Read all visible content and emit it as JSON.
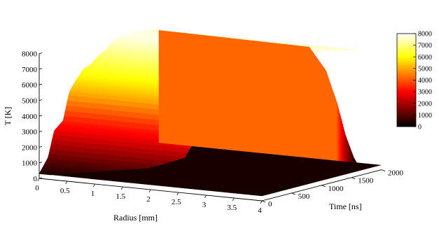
{
  "chart_data": {
    "type": "surface-3d",
    "title": "",
    "xlabel": "Radius [mm]",
    "ylabel": "Time [ns]",
    "zlabel": "T [K]",
    "xlim": [
      0,
      4
    ],
    "ylim": [
      0,
      2000
    ],
    "zlim": [
      0,
      8000
    ],
    "x_ticks": [
      "0",
      "0.5",
      "1",
      "1.5",
      "2",
      "2.5",
      "3",
      "3.5",
      "4"
    ],
    "y_ticks": [
      "0",
      "500",
      "1000",
      "1500",
      "2000"
    ],
    "z_ticks": [
      "0",
      "1000",
      "2000",
      "3000",
      "4000",
      "5000",
      "6000",
      "7000",
      "8000"
    ],
    "colorbar": {
      "colormap": "hot",
      "range": [
        0,
        8000
      ],
      "ticks": [
        "0",
        "1000",
        "2000",
        "3000",
        "4000",
        "5000",
        "6000",
        "7000",
        "8000"
      ]
    },
    "background_temperature": 300,
    "plateau_profile_at_radius_0": {
      "time": [
        0,
        150,
        250,
        400,
        500,
        600,
        750,
        850,
        1000,
        1100,
        1250,
        1400,
        1600,
        1800,
        2000
      ],
      "temperature": [
        300,
        1200,
        2800,
        3300,
        5000,
        5600,
        6300,
        6400,
        6900,
        7100,
        7600,
        7800,
        7800,
        7700,
        7500
      ]
    },
    "edge_radius_at_time": {
      "time": [
        0,
        200,
        400,
        600,
        800,
        1000,
        1200,
        1400,
        1600,
        1800,
        2000
      ],
      "radius": [
        0.2,
        2.4,
        2.7,
        2.9,
        3.05,
        3.2,
        3.3,
        3.4,
        3.45,
        3.5,
        3.55
      ]
    },
    "end_face_at_time_2000": {
      "radius": [
        0,
        2.7,
        3.0,
        3.2,
        3.35,
        3.5,
        3.55
      ],
      "temperature": [
        7500,
        7400,
        6000,
        4000,
        2000,
        600,
        300
      ]
    }
  }
}
